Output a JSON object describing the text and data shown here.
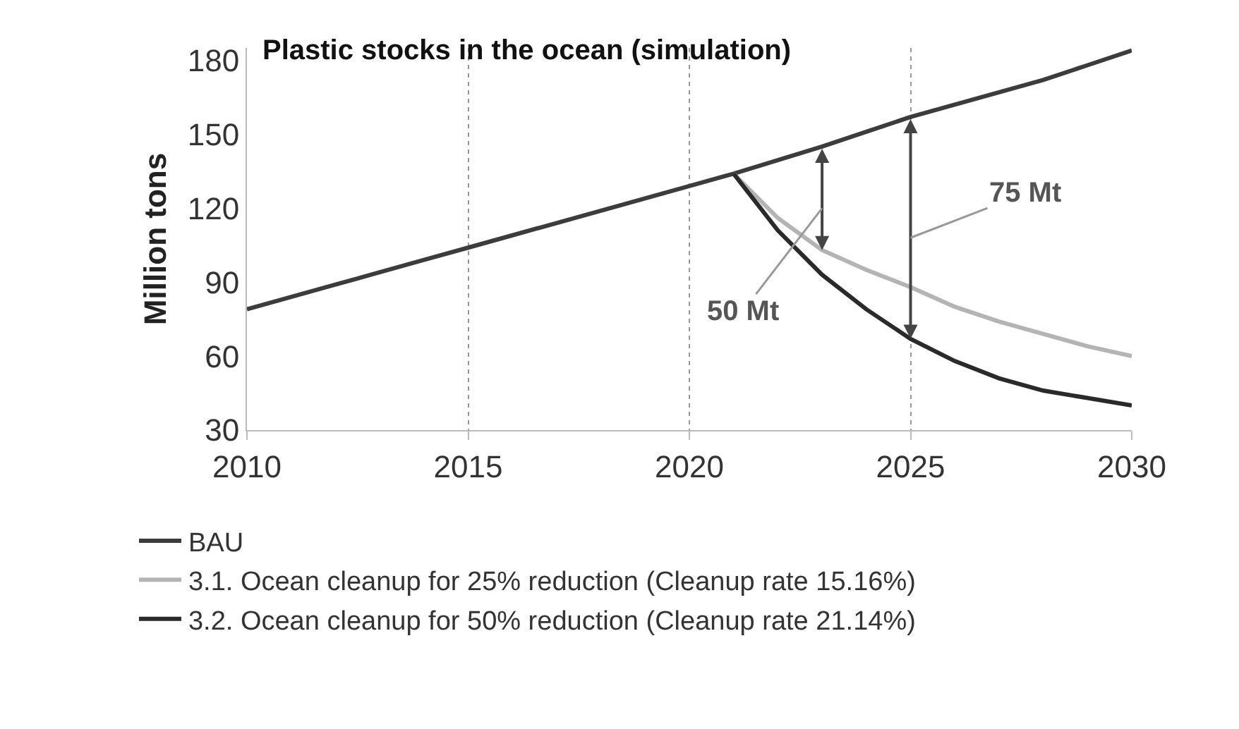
{
  "chart_data": {
    "type": "line",
    "title": "Plastic stocks in the ocean (simulation)",
    "ylabel": "Million tons",
    "xlim": [
      2010,
      2030
    ],
    "xticks": [
      2010,
      2015,
      2020,
      2025,
      {
        "value": 2030,
        "label": "2030"
      }
    ],
    "ylim": [
      30,
      185
    ],
    "yticks": [
      30,
      60,
      90,
      120,
      150,
      180
    ],
    "grid": "x",
    "legend": "bottom",
    "marker": "none",
    "line_style": "solid",
    "series": [
      {
        "name": "BAU",
        "color": "#3c3c3c",
        "x": [
          2010,
          2011,
          2012,
          2013,
          2014,
          2015,
          2016,
          2017,
          2018,
          2019,
          2020,
          2021,
          2022,
          2023,
          2024,
          2025,
          2026,
          2027,
          2028,
          2029,
          2030
        ],
        "values": [
          79,
          84,
          89,
          94,
          99,
          104,
          109,
          114,
          119,
          124,
          129,
          134,
          139.5,
          145,
          151,
          157,
          162,
          167,
          172,
          178,
          184
        ]
      },
      {
        "name": "3.1. Ocean cleanup for 25% reduction (Cleanup rate 15.16%)",
        "color": "#b4b4b4",
        "x": [
          2021,
          2022,
          2023,
          2024,
          2025,
          2026,
          2027,
          2028,
          2029,
          2030
        ],
        "values": [
          134,
          116,
          103,
          95,
          88,
          80,
          74,
          69,
          64,
          60
        ]
      },
      {
        "name": "3.2. Ocean cleanup for 50% reduction (Cleanup rate 21.14%)",
        "color": "#2a2a2a",
        "x": [
          2021,
          2022,
          2023,
          2024,
          2025,
          2026,
          2027,
          2028,
          2029,
          2030
        ],
        "values": [
          134,
          111,
          93,
          79,
          67,
          58,
          51,
          46,
          43,
          40
        ]
      }
    ],
    "annotations": [
      "50 Mt",
      "75 Mt"
    ]
  }
}
